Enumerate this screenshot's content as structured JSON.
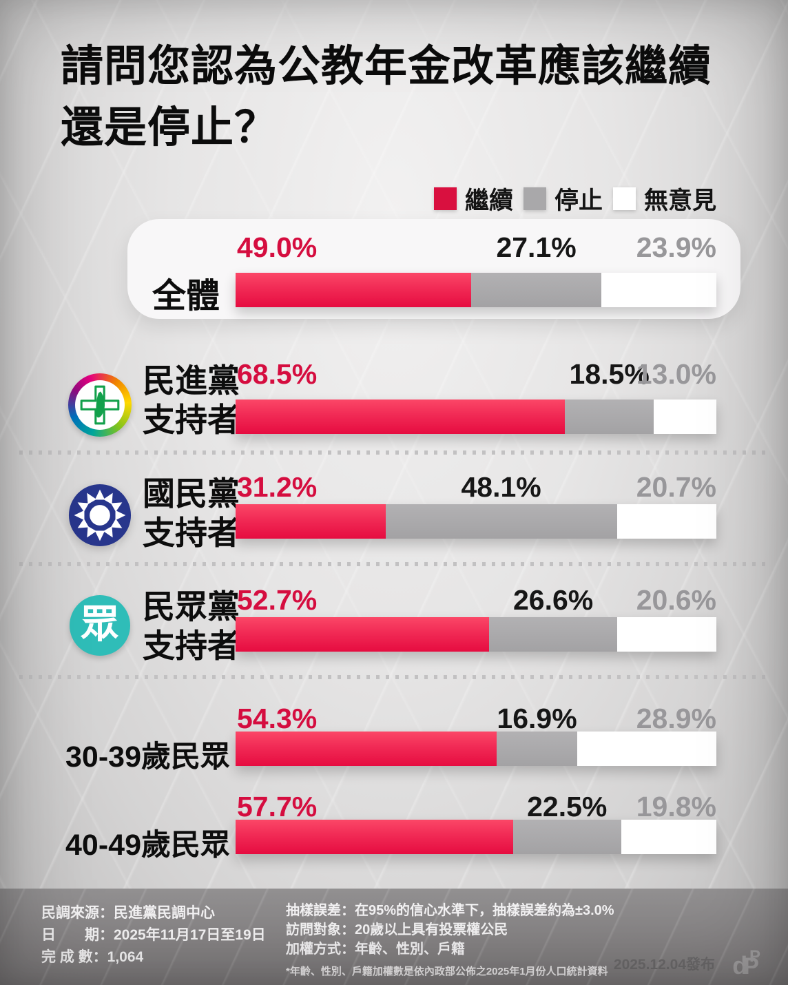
{
  "title": {
    "line1": "請問您認為公教年金改革應該繼續",
    "line2": "還是停止？"
  },
  "legend": {
    "items": [
      {
        "label": "繼續",
        "color": "#d9103f"
      },
      {
        "label": "停止",
        "color": "#a9a8aa"
      },
      {
        "label": "無意見",
        "color": "#ffffff"
      }
    ]
  },
  "chart_data": {
    "type": "bar",
    "stacked": true,
    "orientation": "horizontal",
    "unit": "%",
    "xlim": [
      0,
      100
    ],
    "series_names": [
      "繼續",
      "停止",
      "無意見"
    ],
    "rows": [
      {
        "label": "全體",
        "highlight_card": true,
        "values": {
          "continue": 49.0,
          "stop": 27.1,
          "no_opinion": 23.9
        },
        "labels": {
          "continue": "49.0%",
          "stop": "27.1%",
          "no_opinion": "23.9%"
        }
      },
      {
        "label": "民進黨支持者",
        "label_line1": "民進黨",
        "label_line2": "支持者",
        "icon": "dpp-logo",
        "values": {
          "continue": 68.5,
          "stop": 18.5,
          "no_opinion": 13.0
        },
        "labels": {
          "continue": "68.5%",
          "stop": "18.5%",
          "no_opinion": "13.0%"
        }
      },
      {
        "label": "國民黨支持者",
        "label_line1": "國民黨",
        "label_line2": "支持者",
        "icon": "kmt-logo",
        "values": {
          "continue": 31.2,
          "stop": 48.1,
          "no_opinion": 20.7
        },
        "labels": {
          "continue": "31.2%",
          "stop": "48.1%",
          "no_opinion": "20.7%"
        }
      },
      {
        "label": "民眾黨支持者",
        "label_line1": "民眾黨",
        "label_line2": "支持者",
        "icon": "tpp-logo",
        "values": {
          "continue": 52.7,
          "stop": 26.6,
          "no_opinion": 20.6
        },
        "labels": {
          "continue": "52.7%",
          "stop": "26.6%",
          "no_opinion": "20.6%"
        }
      },
      {
        "label": "30-39歲民眾",
        "values": {
          "continue": 54.3,
          "stop": 16.9,
          "no_opinion": 28.9
        },
        "labels": {
          "continue": "54.3%",
          "stop": "16.9%",
          "no_opinion": "28.9%"
        }
      },
      {
        "label": "40-49歲民眾",
        "values": {
          "continue": 57.7,
          "stop": 22.5,
          "no_opinion": 19.8
        },
        "labels": {
          "continue": "57.7%",
          "stop": "22.5%",
          "no_opinion": "19.8%"
        }
      }
    ]
  },
  "icons": {
    "tpp_glyph": "眾"
  },
  "footer": {
    "left_lines": [
      "民調來源：民進黨民調中心",
      "日　　期：2025年11月17日至19日",
      "完 成 數：1,064"
    ],
    "right_lines": [
      "抽樣誤差：在95%的信心水準下，抽樣誤差約為±3.0%",
      "訪問對象：20歲以上具有投票權公民",
      "加權方式：年齡、性別、戶籍"
    ],
    "note": "*年齡、性別、戶籍加權數是依內政部公佈之2025年1月份人口統計資料",
    "publish_date": "2025.12.04發布",
    "logo_letters": {
      "a": "d",
      "b": "P",
      "c": "P"
    }
  },
  "colors": {
    "continue_bar": "#e60c40",
    "continue_text": "#d50d3f",
    "stop_bar": "#a9a8aa",
    "stop_text": "#161616",
    "no_opinion_bar": "#ffffff",
    "no_opinion_text": "#98979a"
  }
}
